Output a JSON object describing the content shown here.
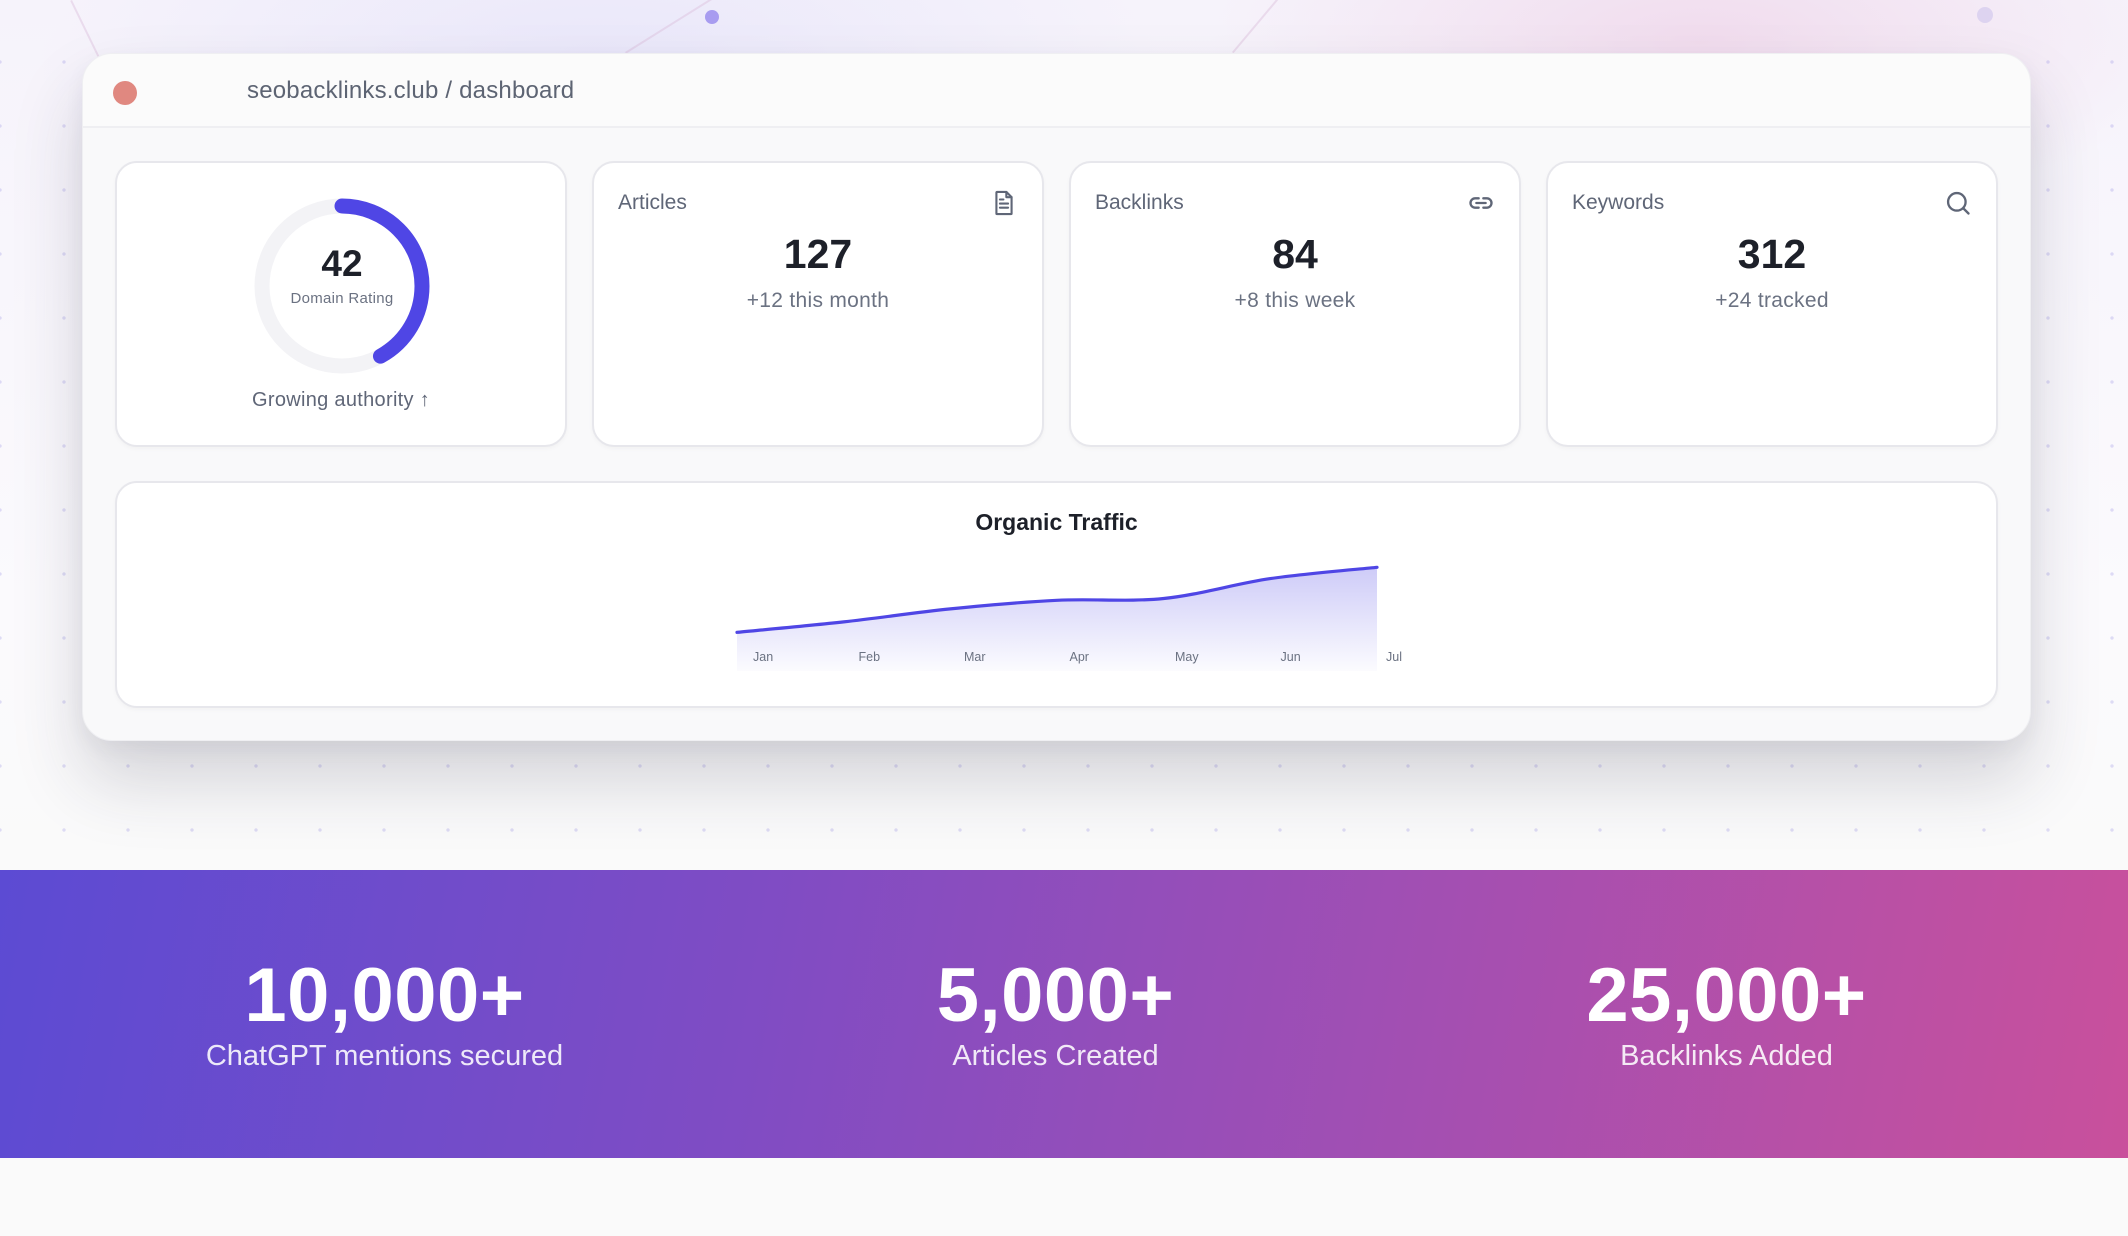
{
  "window": {
    "title": "seobacklinks.club / dashboard",
    "close_dot_color": "#e08880"
  },
  "domain_rating": {
    "value": "42",
    "label": "Domain Rating",
    "caption": "Growing authority ↑",
    "percent": 42,
    "accent": "#4f46e5",
    "track": "#f3f3f6"
  },
  "stats": [
    {
      "label": "Articles",
      "value": "127",
      "sub": "+12 this month",
      "icon": "document-icon"
    },
    {
      "label": "Backlinks",
      "value": "84",
      "sub": "+8 this week",
      "icon": "link-icon"
    },
    {
      "label": "Keywords",
      "value": "312",
      "sub": "+24 tracked",
      "icon": "search-icon"
    }
  ],
  "chart": {
    "title": "Organic Traffic"
  },
  "chart_data": {
    "type": "area",
    "title": "Organic Traffic",
    "categories": [
      "Jan",
      "Feb",
      "Mar",
      "Apr",
      "May",
      "Jun",
      "Jul"
    ],
    "values": [
      10,
      22,
      37,
      47,
      49,
      72,
      85
    ],
    "xlabel": "",
    "ylabel": "",
    "grid": false,
    "legend": "none",
    "line_color": "#4f46e5",
    "fill": "gradient #4f46e5 → transparent"
  },
  "banner": {
    "gradient_start": "#5c4bd3",
    "gradient_end": "#c9509c",
    "items": [
      {
        "number": "10,000+",
        "caption": "ChatGPT mentions secured"
      },
      {
        "number": "5,000+",
        "caption": "Articles Created"
      },
      {
        "number": "25,000+",
        "caption": "Backlinks Added"
      }
    ]
  }
}
